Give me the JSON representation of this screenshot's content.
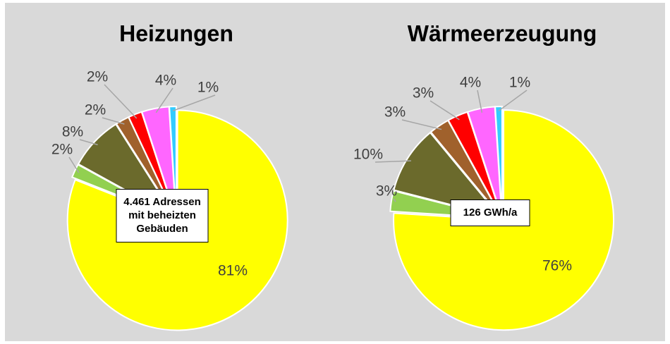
{
  "chart_data": [
    {
      "type": "pie",
      "title": "Heizungen",
      "values": [
        81,
        2,
        8,
        2,
        2,
        4,
        1
      ],
      "value_labels": [
        "81%",
        "2%",
        "8%",
        "2%",
        "2%",
        "4%",
        "1%"
      ],
      "colors": [
        "#ffff00",
        "#92d050",
        "#6b6a2c",
        "#a0612c",
        "#ff0000",
        "#ff66ff",
        "#33ccff"
      ],
      "annotation": [
        "4.461 Adressen",
        "mit beheizten",
        "Gebäuden"
      ]
    },
    {
      "type": "pie",
      "title": "Wärmeerzeugung",
      "values": [
        76,
        3,
        10,
        3,
        3,
        4,
        1
      ],
      "value_labels": [
        "76%",
        "3%",
        "10%",
        "3%",
        "3%",
        "4%",
        "1%"
      ],
      "colors": [
        "#ffff00",
        "#92d050",
        "#6b6a2c",
        "#a0612c",
        "#ff0000",
        "#ff66ff",
        "#33ccff"
      ],
      "annotation": [
        "126 GWh/a"
      ]
    }
  ]
}
